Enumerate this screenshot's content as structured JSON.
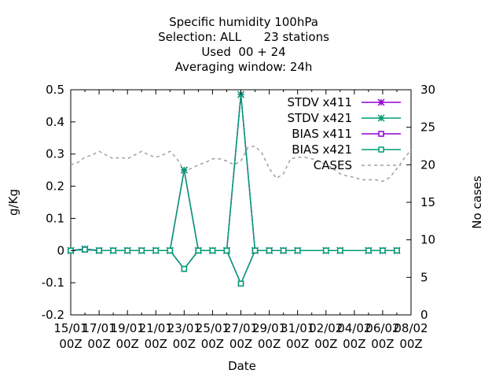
{
  "chart_data": {
    "type": "line",
    "title_lines": [
      "Specific humidity 100hPa",
      "Selection: ALL      23 stations",
      "Used  00 + 24",
      "Averaging window: 24h"
    ],
    "xlabel": "Date",
    "ylabel": "g/Kg",
    "y2label": "No cases",
    "ylim": [
      -0.2,
      0.5
    ],
    "y2lim": [
      0,
      30
    ],
    "yticks": [
      "-0.2",
      "-0.1",
      "0",
      "0.1",
      "0.2",
      "0.3",
      "0.4",
      "0.5"
    ],
    "y2ticks": [
      "0",
      "5",
      "10",
      "15",
      "20",
      "25",
      "30"
    ],
    "xticks": [
      [
        "15/01",
        "00Z"
      ],
      [
        "17/01",
        "00Z"
      ],
      [
        "19/01",
        "00Z"
      ],
      [
        "21/01",
        "00Z"
      ],
      [
        "23/01",
        "00Z"
      ],
      [
        "25/01",
        "00Z"
      ],
      [
        "27/01",
        "00Z"
      ],
      [
        "29/01",
        "00Z"
      ],
      [
        "31/01",
        "00Z"
      ],
      [
        "02/02",
        "00Z"
      ],
      [
        "04/02",
        "00Z"
      ],
      [
        "06/02",
        "00Z"
      ],
      [
        "08/02",
        "00Z"
      ]
    ],
    "x_days": [
      0,
      1,
      2,
      3,
      4,
      5,
      6,
      7,
      8,
      9,
      10,
      11,
      12,
      13,
      14,
      15,
      16,
      18,
      19,
      21,
      22,
      23
    ],
    "grid": false,
    "legend_position": "top-right",
    "series": [
      {
        "name": "STDV x411",
        "color": "#9400d3",
        "marker": "x",
        "values": [
          0,
          0.005,
          0,
          0,
          0,
          0,
          0,
          0,
          0.25,
          0,
          0,
          0,
          0.485,
          0,
          0,
          0,
          0,
          0,
          0,
          0,
          0,
          0
        ]
      },
      {
        "name": "STDV x421",
        "color": "#009e73",
        "marker": "x",
        "values": [
          0,
          0.005,
          0,
          0,
          0,
          0,
          0,
          0,
          0.25,
          0,
          0,
          0,
          0.485,
          0,
          0,
          0,
          0,
          0,
          0,
          0,
          0,
          0
        ]
      },
      {
        "name": "BIAS x411",
        "color": "#9400d3",
        "marker": "square",
        "values": [
          0,
          0.003,
          0,
          0,
          0,
          0,
          0,
          0,
          -0.057,
          0,
          0,
          0,
          -0.103,
          0,
          0,
          0,
          0,
          0,
          0,
          0,
          0,
          0
        ]
      },
      {
        "name": "BIAS x421",
        "color": "#009e73",
        "marker": "square",
        "values": [
          0,
          0.003,
          0,
          0,
          0,
          0,
          0,
          0,
          -0.057,
          0,
          0,
          0,
          -0.103,
          0,
          0,
          0,
          0,
          0,
          0,
          0,
          0,
          0
        ]
      }
    ],
    "cases": {
      "name": "CASES",
      "color": "#a0a0a0",
      "x_days": [
        0,
        0.5,
        1,
        1.5,
        2,
        2.5,
        3,
        3.5,
        4,
        4.5,
        5,
        5.5,
        6,
        6.5,
        7,
        7.5,
        8,
        8.5,
        9,
        9.5,
        10,
        10.5,
        11,
        11.5,
        12,
        12.5,
        13,
        13.5,
        14,
        14.5,
        15,
        15.5,
        16,
        16.5,
        17,
        17.5,
        18,
        18.5,
        19,
        19.5,
        20,
        20.5,
        21,
        21.5,
        22,
        22.5,
        23,
        23.5,
        24
      ],
      "values": [
        20,
        20.3,
        21,
        21.3,
        21.8,
        21.3,
        20.8,
        21,
        20.8,
        21.3,
        21.8,
        21.3,
        21,
        21.3,
        21.8,
        20.8,
        19.2,
        19.5,
        20,
        20.3,
        20.8,
        20.8,
        20.5,
        20,
        20.5,
        22.3,
        22.5,
        21.5,
        19.5,
        18.2,
        18.8,
        20.8,
        21,
        21,
        20.8,
        20.5,
        20,
        19.5,
        18.8,
        18.5,
        18.3,
        18,
        18,
        18,
        17.8,
        18.3,
        19.5,
        20.8,
        22
      ]
    }
  }
}
